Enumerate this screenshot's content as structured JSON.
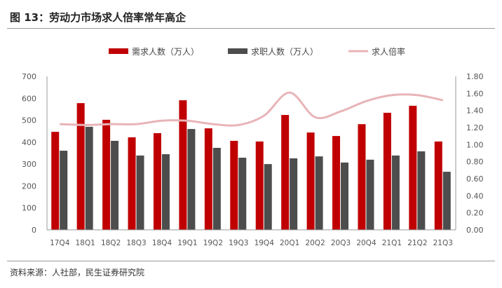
{
  "title": "图 13：劳动力市场求人倍率常年高企",
  "source": "资料来源：人社部，民生证券研究院",
  "chart_data": {
    "type": "bar+line",
    "categories": [
      "17Q4",
      "18Q1",
      "18Q2",
      "18Q3",
      "18Q4",
      "19Q1",
      "19Q2",
      "19Q3",
      "19Q4",
      "20Q1",
      "20Q2",
      "20Q3",
      "20Q4",
      "21Q1",
      "21Q2",
      "21Q3"
    ],
    "series": [
      {
        "name": "需求人数（万人）",
        "type": "bar",
        "axis": "left",
        "color": "#C00000",
        "values": [
          447,
          578,
          502,
          422,
          441,
          591,
          463,
          406,
          403,
          524,
          444,
          428,
          482,
          534,
          566,
          403
        ]
      },
      {
        "name": "求职人数（万人）",
        "type": "bar",
        "axis": "left",
        "color": "#4D4D4D",
        "values": [
          361,
          470,
          406,
          339,
          345,
          460,
          374,
          329,
          300,
          326,
          335,
          307,
          320,
          339,
          358,
          265
        ]
      },
      {
        "name": "求人倍率",
        "type": "line",
        "axis": "right",
        "color": "#E8B4B8",
        "values": [
          1.24,
          1.23,
          1.24,
          1.24,
          1.28,
          1.28,
          1.24,
          1.23,
          1.34,
          1.61,
          1.32,
          1.39,
          1.51,
          1.58,
          1.58,
          1.52
        ]
      }
    ],
    "yleft": {
      "ticks": [
        "0",
        "100",
        "200",
        "300",
        "400",
        "500",
        "600",
        "700"
      ],
      "range": [
        0,
        700
      ]
    },
    "yright": {
      "ticks": [
        "0.00",
        "0.20",
        "0.40",
        "0.60",
        "0.80",
        "1.00",
        "1.20",
        "1.40",
        "1.60",
        "1.80"
      ],
      "range": [
        0,
        1.8
      ]
    },
    "legend": "top"
  }
}
